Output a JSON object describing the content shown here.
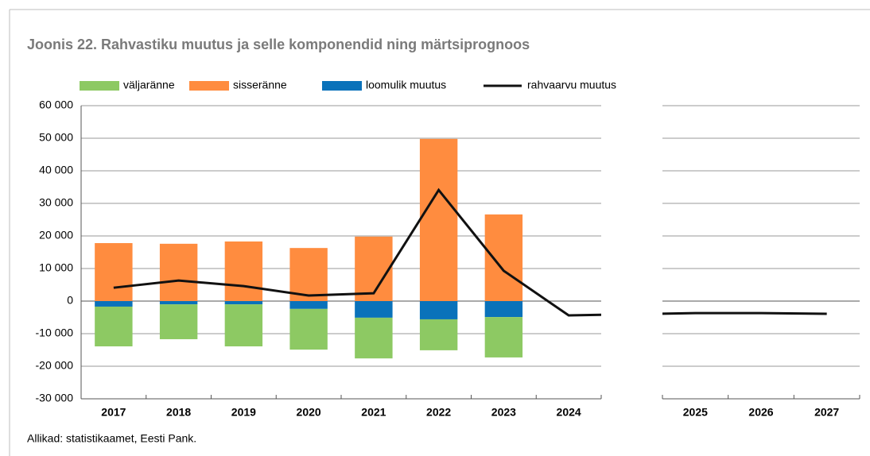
{
  "chart_data": {
    "type": "bar",
    "stacked": true,
    "title": "Joonis 22. Rahvastiku muutus ja selle komponendid ning märtsiprognoos",
    "source": "Allikad: statistikaamet, Eesti Pank.",
    "categories": [
      "2017",
      "2018",
      "2019",
      "2020",
      "2021",
      "2022",
      "2023",
      "2024",
      "2025",
      "2026",
      "2027"
    ],
    "series": [
      {
        "name": "väljaränne",
        "type": "bar",
        "color": "#8dc963",
        "values": [
          -12200,
          -10700,
          -12900,
          -12500,
          -12500,
          -9500,
          -12400,
          null,
          null,
          null,
          null
        ]
      },
      {
        "name": "sisseränne",
        "type": "bar",
        "color": "#ff8c3f",
        "values": [
          17800,
          17600,
          18300,
          16300,
          19800,
          49800,
          26600,
          null,
          null,
          null,
          null
        ]
      },
      {
        "name": "loomulik muutus",
        "type": "bar",
        "color": "#0a72ba",
        "values": [
          -1700,
          -1000,
          -1000,
          -2400,
          -5100,
          -5600,
          -4900,
          null,
          null,
          null,
          null
        ]
      },
      {
        "name": "rahvaarvu muutus",
        "type": "line",
        "color": "#111111",
        "values": [
          4100,
          6300,
          4600,
          1700,
          2400,
          34100,
          9300,
          -4400,
          -3700,
          -3700,
          -3900
        ]
      }
    ],
    "ylim": [
      -30000,
      60000
    ],
    "yticks": [
      {
        "value": -30000,
        "label": "-30 000"
      },
      {
        "value": -20000,
        "label": "-20 000"
      },
      {
        "value": -10000,
        "label": "-10 000"
      },
      0,
      {
        "value": 10000,
        "label": "10 000"
      },
      {
        "value": 20000,
        "label": "20 000"
      },
      {
        "value": 30000,
        "label": "30 000"
      },
      {
        "value": 40000,
        "label": "40 000"
      },
      {
        "value": 50000,
        "label": "50 000"
      },
      {
        "value": 60000,
        "label": "60 000"
      }
    ],
    "grid": true
  }
}
